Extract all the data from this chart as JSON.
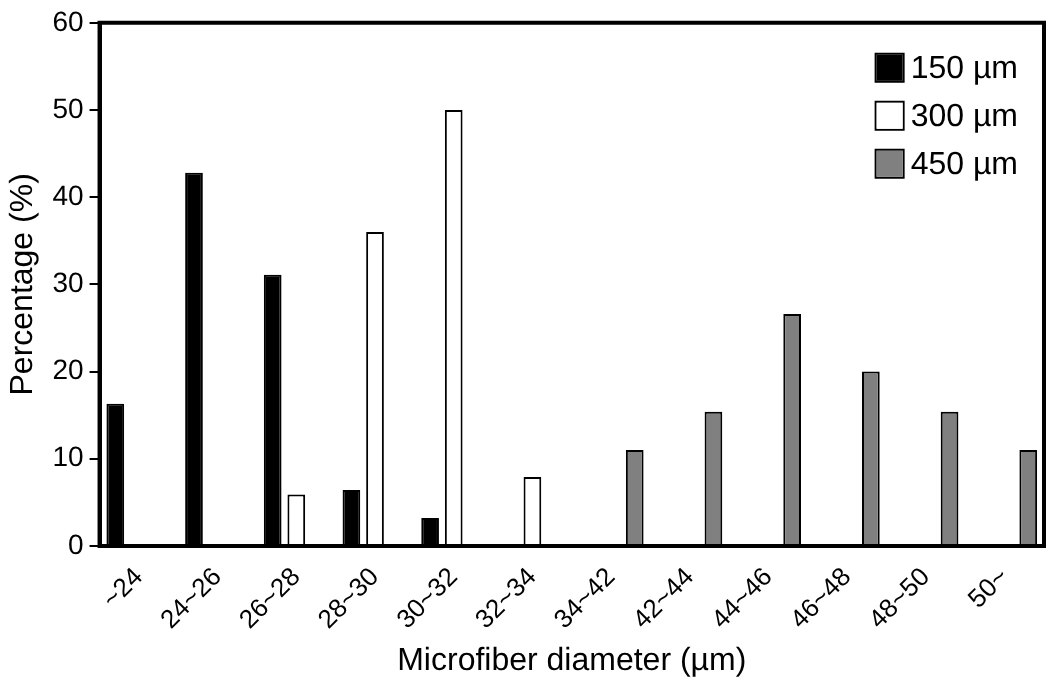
{
  "chart_data": {
    "type": "bar",
    "xlabel": "Microfiber diameter (µm)",
    "ylabel": "Percentage (%)",
    "categories": [
      "~24",
      "24~26",
      "26~28",
      "28~30",
      "30~32",
      "32~34",
      "34~42",
      "42~44",
      "44~46",
      "46~48",
      "48~50",
      "50~"
    ],
    "series": [
      {
        "name": "150 µm",
        "color": "#000000",
        "values": [
          16.3,
          42.8,
          31.1,
          6.4,
          3.2,
          null,
          null,
          null,
          null,
          null,
          null,
          null
        ]
      },
      {
        "name": "300 µm",
        "color": "#ffffff",
        "values": [
          null,
          null,
          5.9,
          36.0,
          50.0,
          7.9,
          null,
          null,
          null,
          null,
          null,
          null
        ]
      },
      {
        "name": "450 µm",
        "color": "#808080",
        "values": [
          null,
          null,
          null,
          null,
          null,
          null,
          11.0,
          15.4,
          26.6,
          20.0,
          15.4,
          11.0
        ]
      }
    ],
    "ylim": [
      0,
      60
    ],
    "yticks": [
      0,
      10,
      20,
      30,
      40,
      50,
      60
    ],
    "grid": false,
    "legend": "top right"
  }
}
